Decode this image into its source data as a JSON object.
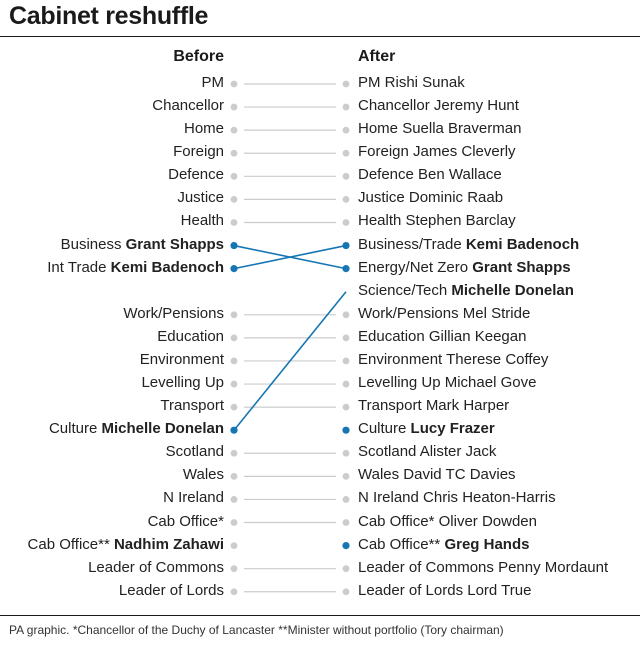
{
  "title": "Cabinet reshuffle",
  "columns": {
    "before": "Before",
    "after": "After"
  },
  "colors": {
    "changed": "#1676b4",
    "unchanged": "#cccccc"
  },
  "rows": [
    {
      "role": "PM",
      "before": "",
      "after_role": "PM",
      "after": "Rishi Sunak",
      "after_bold": false,
      "left_dot": "grey",
      "right_dot": "grey"
    },
    {
      "role": "Chancellor",
      "before": "",
      "after_role": "Chancellor",
      "after": "Jeremy Hunt",
      "after_bold": false,
      "left_dot": "grey",
      "right_dot": "grey"
    },
    {
      "role": "Home",
      "before": "",
      "after_role": "Home",
      "after": "Suella Braverman",
      "after_bold": false,
      "left_dot": "grey",
      "right_dot": "grey"
    },
    {
      "role": "Foreign",
      "before": "",
      "after_role": "Foreign",
      "after": "James Cleverly",
      "after_bold": false,
      "left_dot": "grey",
      "right_dot": "grey"
    },
    {
      "role": "Defence",
      "before": "",
      "after_role": "Defence",
      "after": "Ben Wallace",
      "after_bold": false,
      "left_dot": "grey",
      "right_dot": "grey"
    },
    {
      "role": "Justice",
      "before": "",
      "after_role": "Justice",
      "after": "Dominic Raab",
      "after_bold": false,
      "left_dot": "grey",
      "right_dot": "grey"
    },
    {
      "role": "Health",
      "before": "",
      "after_role": "Health",
      "after": "Stephen Barclay",
      "after_bold": false,
      "left_dot": "grey",
      "right_dot": "grey"
    },
    {
      "role": "Business",
      "before": "Grant Shapps",
      "after_role": "Business/Trade",
      "after": "Kemi Badenoch",
      "after_bold": true,
      "left_dot": "blue",
      "right_dot": "blue"
    },
    {
      "role": "Int Trade",
      "before": "Kemi Badenoch",
      "after_role": "Energy/Net Zero",
      "after": "Grant Shapps",
      "after_bold": true,
      "left_dot": "blue",
      "right_dot": "blue"
    },
    {
      "role": "",
      "before": "",
      "after_role": "Science/Tech",
      "after": "Michelle Donelan",
      "after_bold": true,
      "left_dot": "none",
      "right_dot": "none"
    },
    {
      "role": "Work/Pensions",
      "before": "",
      "after_role": "Work/Pensions",
      "after": "Mel Stride",
      "after_bold": false,
      "left_dot": "grey",
      "right_dot": "grey"
    },
    {
      "role": "Education",
      "before": "",
      "after_role": "Education",
      "after": "Gillian Keegan",
      "after_bold": false,
      "left_dot": "grey",
      "right_dot": "grey"
    },
    {
      "role": "Environment",
      "before": "",
      "after_role": "Environment",
      "after": "Therese Coffey",
      "after_bold": false,
      "left_dot": "grey",
      "right_dot": "grey"
    },
    {
      "role": "Levelling Up",
      "before": "",
      "after_role": "Levelling Up",
      "after": "Michael Gove",
      "after_bold": false,
      "left_dot": "grey",
      "right_dot": "grey"
    },
    {
      "role": "Transport",
      "before": "",
      "after_role": "Transport",
      "after": "Mark Harper",
      "after_bold": false,
      "left_dot": "grey",
      "right_dot": "grey"
    },
    {
      "role": "Culture",
      "before": "Michelle Donelan",
      "after_role": "Culture",
      "after": "Lucy Frazer",
      "after_bold": true,
      "left_dot": "blue",
      "right_dot": "blue"
    },
    {
      "role": "Scotland",
      "before": "",
      "after_role": "Scotland",
      "after": "Alister Jack",
      "after_bold": false,
      "left_dot": "grey",
      "right_dot": "grey"
    },
    {
      "role": "Wales",
      "before": "",
      "after_role": "Wales",
      "after": "David TC Davies",
      "after_bold": false,
      "left_dot": "grey",
      "right_dot": "grey"
    },
    {
      "role": "N Ireland",
      "before": "",
      "after_role": "N Ireland",
      "after": "Chris Heaton-Harris",
      "after_bold": false,
      "left_dot": "grey",
      "right_dot": "grey"
    },
    {
      "role": "Cab Office*",
      "before": "",
      "after_role": "Cab Office*",
      "after": "Oliver Dowden",
      "after_bold": false,
      "left_dot": "grey",
      "right_dot": "grey"
    },
    {
      "role": "Cab Office**",
      "before": "Nadhim Zahawi",
      "after_role": "Cab Office**",
      "after": "Greg Hands",
      "after_bold": true,
      "left_dot": "grey",
      "right_dot": "blue"
    },
    {
      "role": "Leader of Commons",
      "before": "",
      "after_role": "Leader of Commons",
      "after": "Penny Mordaunt",
      "after_bold": false,
      "left_dot": "grey",
      "right_dot": "grey"
    },
    {
      "role": "Leader of Lords",
      "before": "",
      "after_role": "Leader of Lords",
      "after": "Lord True",
      "after_bold": false,
      "left_dot": "grey",
      "right_dot": "grey"
    }
  ],
  "moves": [
    {
      "from_row": 7,
      "to_row": 8
    },
    {
      "from_row": 8,
      "to_row": 7
    },
    {
      "from_row": 15,
      "to_row": 9
    }
  ],
  "footnote": "PA graphic. *Chancellor of the Duchy of Lancaster **Minister without portfolio (Tory chairman)"
}
